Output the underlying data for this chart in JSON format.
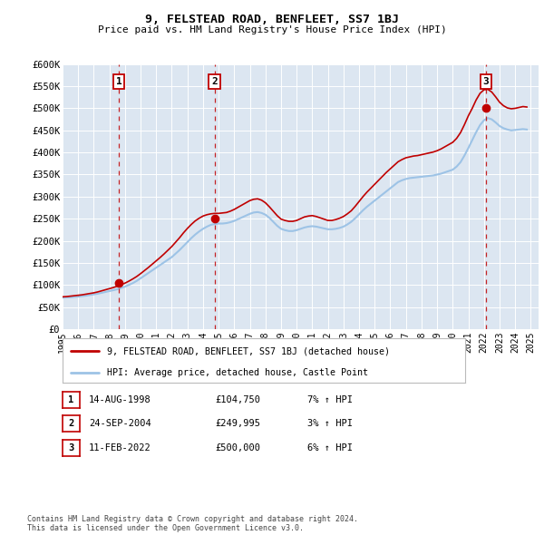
{
  "title": "9, FELSTEAD ROAD, BENFLEET, SS7 1BJ",
  "subtitle": "Price paid vs. HM Land Registry's House Price Index (HPI)",
  "ylim": [
    0,
    600000
  ],
  "yticks": [
    0,
    50000,
    100000,
    150000,
    200000,
    250000,
    300000,
    350000,
    400000,
    450000,
    500000,
    550000,
    600000
  ],
  "ytick_labels": [
    "£0",
    "£50K",
    "£100K",
    "£150K",
    "£200K",
    "£250K",
    "£300K",
    "£350K",
    "£400K",
    "£450K",
    "£500K",
    "£550K",
    "£600K"
  ],
  "xlim_start": 1995.0,
  "xlim_end": 2025.5,
  "background_color": "#ffffff",
  "plot_bg_color": "#dce6f1",
  "grid_color": "#ffffff",
  "red_line_color": "#c00000",
  "blue_line_color": "#9dc3e6",
  "sales": [
    {
      "num": 1,
      "year": 1998.617,
      "price": 104750,
      "label": "14-AUG-1998",
      "price_label": "£104,750",
      "hpi_label": "7% ↑ HPI"
    },
    {
      "num": 2,
      "year": 2004.733,
      "price": 249995,
      "label": "24-SEP-2004",
      "price_label": "£249,995",
      "hpi_label": "3% ↑ HPI"
    },
    {
      "num": 3,
      "year": 2022.117,
      "price": 500000,
      "label": "11-FEB-2022",
      "price_label": "£500,000",
      "hpi_label": "6% ↑ HPI"
    }
  ],
  "legend_property": "9, FELSTEAD ROAD, BENFLEET, SS7 1BJ (detached house)",
  "legend_hpi": "HPI: Average price, detached house, Castle Point",
  "footnote": "Contains HM Land Registry data © Crown copyright and database right 2024.\nThis data is licensed under the Open Government Licence v3.0.",
  "xticks": [
    1995,
    1996,
    1997,
    1998,
    1999,
    2000,
    2001,
    2002,
    2003,
    2004,
    2005,
    2006,
    2007,
    2008,
    2009,
    2010,
    2011,
    2012,
    2013,
    2014,
    2015,
    2016,
    2017,
    2018,
    2019,
    2020,
    2021,
    2022,
    2023,
    2024,
    2025
  ],
  "hpi_years": [
    1995.0,
    1995.25,
    1995.5,
    1995.75,
    1996.0,
    1996.25,
    1996.5,
    1996.75,
    1997.0,
    1997.25,
    1997.5,
    1997.75,
    1998.0,
    1998.25,
    1998.5,
    1998.75,
    1999.0,
    1999.25,
    1999.5,
    1999.75,
    2000.0,
    2000.25,
    2000.5,
    2000.75,
    2001.0,
    2001.25,
    2001.5,
    2001.75,
    2002.0,
    2002.25,
    2002.5,
    2002.75,
    2003.0,
    2003.25,
    2003.5,
    2003.75,
    2004.0,
    2004.25,
    2004.5,
    2004.75,
    2005.0,
    2005.25,
    2005.5,
    2005.75,
    2006.0,
    2006.25,
    2006.5,
    2006.75,
    2007.0,
    2007.25,
    2007.5,
    2007.75,
    2008.0,
    2008.25,
    2008.5,
    2008.75,
    2009.0,
    2009.25,
    2009.5,
    2009.75,
    2010.0,
    2010.25,
    2010.5,
    2010.75,
    2011.0,
    2011.25,
    2011.5,
    2011.75,
    2012.0,
    2012.25,
    2012.5,
    2012.75,
    2013.0,
    2013.25,
    2013.5,
    2013.75,
    2014.0,
    2014.25,
    2014.5,
    2014.75,
    2015.0,
    2015.25,
    2015.5,
    2015.75,
    2016.0,
    2016.25,
    2016.5,
    2016.75,
    2017.0,
    2017.25,
    2017.5,
    2017.75,
    2018.0,
    2018.25,
    2018.5,
    2018.75,
    2019.0,
    2019.25,
    2019.5,
    2019.75,
    2020.0,
    2020.25,
    2020.5,
    2020.75,
    2021.0,
    2021.25,
    2021.5,
    2021.75,
    2022.0,
    2022.25,
    2022.5,
    2022.75,
    2023.0,
    2023.25,
    2023.5,
    2023.75,
    2024.0,
    2024.25,
    2024.5,
    2024.75
  ],
  "hpi_values": [
    71000,
    71500,
    72000,
    72800,
    73500,
    74500,
    75500,
    77000,
    78500,
    80000,
    82000,
    84000,
    86000,
    88000,
    90000,
    93000,
    96000,
    100000,
    104000,
    109000,
    115000,
    121000,
    127000,
    133000,
    139000,
    145000,
    151000,
    157000,
    163000,
    171000,
    179000,
    188000,
    197000,
    206000,
    214000,
    221000,
    227000,
    232000,
    236000,
    238000,
    239000,
    239000,
    240000,
    242000,
    245000,
    249000,
    253000,
    257000,
    261000,
    264000,
    265000,
    263000,
    259000,
    252000,
    243000,
    234000,
    227000,
    224000,
    222000,
    222000,
    224000,
    227000,
    230000,
    232000,
    233000,
    232000,
    230000,
    228000,
    226000,
    226000,
    227000,
    229000,
    232000,
    237000,
    243000,
    251000,
    260000,
    269000,
    277000,
    284000,
    291000,
    298000,
    305000,
    312000,
    319000,
    326000,
    333000,
    337000,
    340000,
    342000,
    343000,
    344000,
    345000,
    346000,
    347000,
    348000,
    350000,
    352000,
    355000,
    358000,
    361000,
    368000,
    378000,
    393000,
    410000,
    428000,
    446000,
    462000,
    473000,
    478000,
    475000,
    468000,
    460000,
    455000,
    452000,
    450000,
    451000,
    452000,
    453000,
    452000
  ],
  "prop_years": [
    1995.0,
    1995.25,
    1995.5,
    1995.75,
    1996.0,
    1996.25,
    1996.5,
    1996.75,
    1997.0,
    1997.25,
    1997.5,
    1997.75,
    1998.0,
    1998.25,
    1998.5,
    1998.75,
    1999.0,
    1999.25,
    1999.5,
    1999.75,
    2000.0,
    2000.25,
    2000.5,
    2000.75,
    2001.0,
    2001.25,
    2001.5,
    2001.75,
    2002.0,
    2002.25,
    2002.5,
    2002.75,
    2003.0,
    2003.25,
    2003.5,
    2003.75,
    2004.0,
    2004.25,
    2004.5,
    2004.75,
    2005.0,
    2005.25,
    2005.5,
    2005.75,
    2006.0,
    2006.25,
    2006.5,
    2006.75,
    2007.0,
    2007.25,
    2007.5,
    2007.75,
    2008.0,
    2008.25,
    2008.5,
    2008.75,
    2009.0,
    2009.25,
    2009.5,
    2009.75,
    2010.0,
    2010.25,
    2010.5,
    2010.75,
    2011.0,
    2011.25,
    2011.5,
    2011.75,
    2012.0,
    2012.25,
    2012.5,
    2012.75,
    2013.0,
    2013.25,
    2013.5,
    2013.75,
    2014.0,
    2014.25,
    2014.5,
    2014.75,
    2015.0,
    2015.25,
    2015.5,
    2015.75,
    2016.0,
    2016.25,
    2016.5,
    2016.75,
    2017.0,
    2017.25,
    2017.5,
    2017.75,
    2018.0,
    2018.25,
    2018.5,
    2018.75,
    2019.0,
    2019.25,
    2019.5,
    2019.75,
    2020.0,
    2020.25,
    2020.5,
    2020.75,
    2021.0,
    2021.25,
    2021.5,
    2021.75,
    2022.0,
    2022.25,
    2022.5,
    2022.75,
    2023.0,
    2023.25,
    2023.5,
    2023.75,
    2024.0,
    2024.25,
    2024.5,
    2024.75
  ],
  "prop_values": [
    73000,
    73500,
    74500,
    75500,
    76500,
    77500,
    79000,
    80500,
    82000,
    84000,
    86500,
    89000,
    91500,
    94000,
    97000,
    100500,
    104000,
    108500,
    113500,
    119000,
    125500,
    132500,
    139500,
    147000,
    154500,
    162000,
    170000,
    178500,
    187000,
    197000,
    207000,
    218000,
    228000,
    237000,
    245000,
    251000,
    256000,
    259000,
    261000,
    262000,
    262000,
    263000,
    264000,
    267000,
    271000,
    276000,
    281000,
    286000,
    291000,
    294000,
    295000,
    292000,
    286000,
    277000,
    267000,
    257000,
    249000,
    246000,
    244000,
    244000,
    246000,
    250000,
    254000,
    256000,
    257000,
    255000,
    252000,
    249000,
    246000,
    246000,
    248000,
    251000,
    255000,
    261000,
    268000,
    278000,
    289000,
    300000,
    310000,
    319000,
    328000,
    337000,
    346000,
    355000,
    363000,
    371000,
    379000,
    384000,
    388000,
    390000,
    392000,
    393000,
    395000,
    397000,
    399000,
    401000,
    404000,
    408000,
    413000,
    418000,
    423000,
    432000,
    445000,
    463000,
    483000,
    500000,
    519000,
    534000,
    542000,
    543000,
    537000,
    526000,
    514000,
    506000,
    501000,
    499000,
    500000,
    502000,
    504000,
    503000
  ]
}
